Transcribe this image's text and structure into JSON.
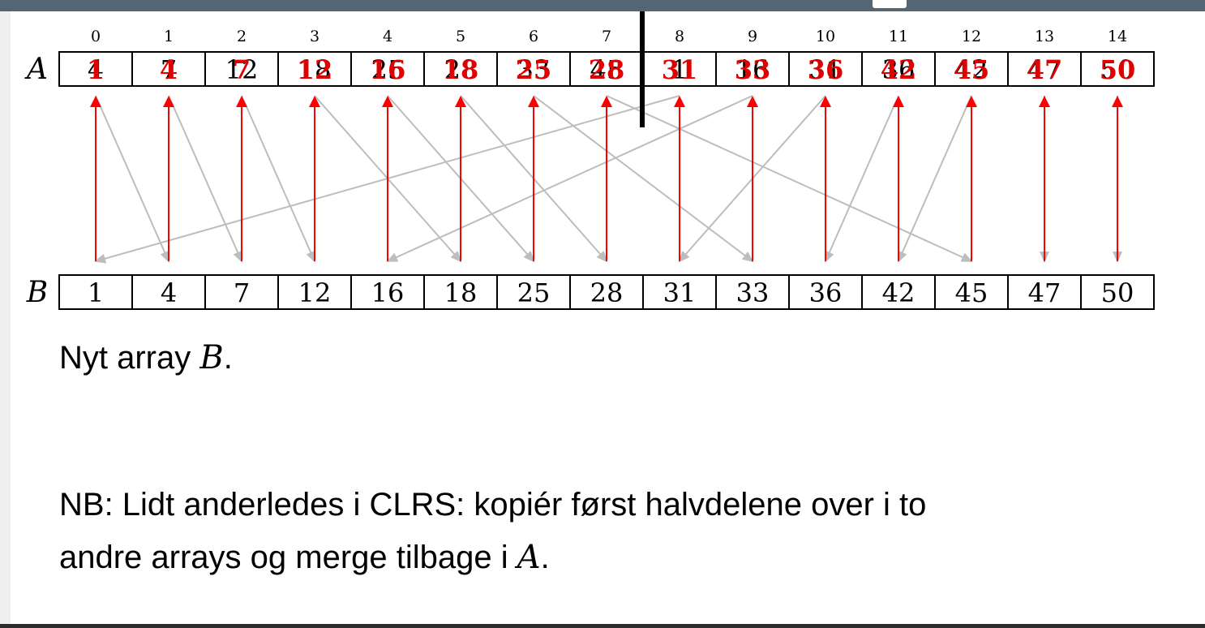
{
  "indices": [
    "0",
    "1",
    "2",
    "3",
    "4",
    "5",
    "6",
    "7",
    "8",
    "9",
    "10",
    "11",
    "12",
    "13",
    "14"
  ],
  "array_a": {
    "label": "A",
    "values": [
      "4",
      "7",
      "12",
      "18",
      "25",
      "28",
      "33",
      "45",
      "1",
      "16",
      "31",
      "36",
      "42",
      "47",
      "50"
    ],
    "overlay": [
      "1",
      "4",
      "7",
      "12",
      "16",
      "18",
      "25",
      "28",
      "31",
      "33",
      "36",
      "42",
      "45",
      "47",
      "50"
    ]
  },
  "array_b": {
    "label": "B",
    "values": [
      "1",
      "4",
      "7",
      "12",
      "16",
      "18",
      "25",
      "28",
      "31",
      "33",
      "36",
      "42",
      "45",
      "47",
      "50"
    ]
  },
  "grey_arrows": [
    [
      0,
      1
    ],
    [
      1,
      2
    ],
    [
      2,
      3
    ],
    [
      3,
      5
    ],
    [
      4,
      6
    ],
    [
      5,
      7
    ],
    [
      6,
      9
    ],
    [
      7,
      12
    ],
    [
      8,
      0
    ],
    [
      9,
      4
    ],
    [
      10,
      8
    ],
    [
      11,
      10
    ],
    [
      12,
      11
    ],
    [
      13,
      13
    ],
    [
      14,
      14
    ]
  ],
  "caption": {
    "text": "Nyt array ",
    "var": "B",
    "end": "."
  },
  "note": {
    "line1": "NB: Lidt anderledes i CLRS: kopiér først halvdelene over i to",
    "line2": "andre arrays og merge tilbage i ",
    "line2_var": "A",
    "line2_end": "."
  },
  "colors": {
    "copy_arrow": "#ff0000",
    "merge_arrow": "#bdbdbd",
    "divider": "#000000",
    "overlay_text": "#e00000"
  }
}
